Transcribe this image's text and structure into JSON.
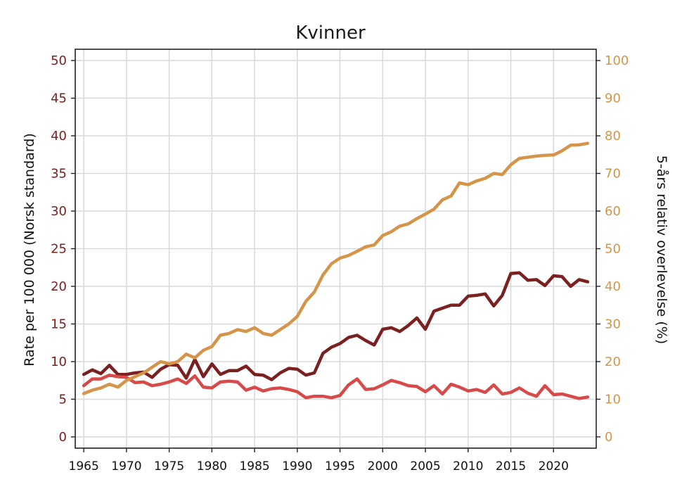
{
  "chart_data": {
    "type": "line",
    "title": "Kvinner",
    "ylabel": "Rate per 100 000 (Norsk standard)",
    "y2label": "5-års relativ overlevelse (%)",
    "xlim": [
      1964,
      2025
    ],
    "ylim": [
      -1.5,
      51.5
    ],
    "y2lim": [
      -3,
      103
    ],
    "xticks": [
      1965,
      1970,
      1975,
      1980,
      1985,
      1990,
      1995,
      2000,
      2005,
      2010,
      2015,
      2020
    ],
    "yticks": [
      0,
      5,
      10,
      15,
      20,
      25,
      30,
      35,
      40,
      45,
      50
    ],
    "y2ticks": [
      0,
      10,
      20,
      30,
      40,
      50,
      60,
      70,
      80,
      90,
      100
    ],
    "grid": true,
    "series": [
      {
        "axis": "left",
        "color": "#7b2020",
        "x": [
          1965,
          1966,
          1967,
          1968,
          1969,
          1970,
          1971,
          1972,
          1973,
          1974,
          1975,
          1976,
          1977,
          1978,
          1979,
          1980,
          1981,
          1982,
          1983,
          1984,
          1985,
          1986,
          1987,
          1988,
          1989,
          1990,
          1991,
          1992,
          1993,
          1994,
          1995,
          1996,
          1997,
          1998,
          1999,
          2000,
          2001,
          2002,
          2003,
          2004,
          2005,
          2006,
          2007,
          2008,
          2009,
          2010,
          2011,
          2012,
          2013,
          2014,
          2015,
          2016,
          2017,
          2018,
          2019,
          2020,
          2021,
          2022,
          2023,
          2024
        ],
        "y": [
          8.3,
          8.9,
          8.4,
          9.5,
          8.3,
          8.3,
          8.5,
          8.6,
          7.9,
          9.0,
          9.6,
          9.5,
          7.8,
          10.3,
          8.0,
          9.7,
          8.3,
          8.8,
          8.8,
          9.4,
          8.3,
          8.2,
          7.6,
          8.5,
          9.1,
          9.0,
          8.2,
          8.5,
          11.1,
          11.9,
          12.4,
          13.2,
          13.5,
          12.8,
          12.2,
          14.3,
          14.5,
          14.0,
          14.8,
          15.8,
          14.3,
          16.7,
          17.1,
          17.5,
          17.5,
          18.7,
          18.8,
          19.0,
          17.4,
          18.8,
          21.7,
          21.8,
          20.8,
          20.9,
          20.1,
          21.4,
          21.3,
          20.0,
          20.9,
          20.6
        ]
      },
      {
        "axis": "left",
        "color": "#d84a4a",
        "x": [
          1965,
          1966,
          1967,
          1968,
          1969,
          1970,
          1971,
          1972,
          1973,
          1974,
          1975,
          1976,
          1977,
          1978,
          1979,
          1980,
          1981,
          1982,
          1983,
          1984,
          1985,
          1986,
          1987,
          1988,
          1989,
          1990,
          1991,
          1992,
          1993,
          1994,
          1995,
          1996,
          1997,
          1998,
          1999,
          2000,
          2001,
          2002,
          2003,
          2004,
          2005,
          2006,
          2007,
          2008,
          2009,
          2010,
          2011,
          2012,
          2013,
          2014,
          2015,
          2016,
          2017,
          2018,
          2019,
          2020,
          2021,
          2022,
          2023,
          2024
        ],
        "y": [
          6.8,
          7.7,
          7.7,
          8.2,
          8.0,
          7.9,
          7.2,
          7.3,
          6.8,
          7.0,
          7.3,
          7.7,
          7.1,
          8.1,
          6.6,
          6.5,
          7.3,
          7.4,
          7.3,
          6.2,
          6.6,
          6.1,
          6.4,
          6.5,
          6.3,
          6.0,
          5.2,
          5.4,
          5.4,
          5.2,
          5.5,
          6.9,
          7.7,
          6.3,
          6.4,
          6.9,
          7.5,
          7.2,
          6.8,
          6.7,
          6.0,
          6.8,
          5.7,
          7.0,
          6.6,
          6.1,
          6.3,
          5.9,
          6.9,
          5.7,
          5.9,
          6.5,
          5.8,
          5.4,
          6.8,
          5.6,
          5.7,
          5.4,
          5.1,
          5.3
        ]
      },
      {
        "axis": "right",
        "color": "#d4954a",
        "x": [
          1965,
          1966,
          1967,
          1968,
          1969,
          1970,
          1971,
          1972,
          1973,
          1974,
          1975,
          1976,
          1977,
          1978,
          1979,
          1980,
          1981,
          1982,
          1983,
          1984,
          1985,
          1986,
          1987,
          1988,
          1989,
          1990,
          1991,
          1992,
          1993,
          1994,
          1995,
          1996,
          1997,
          1998,
          1999,
          2000,
          2001,
          2002,
          2003,
          2004,
          2005,
          2006,
          2007,
          2008,
          2009,
          2010,
          2011,
          2012,
          2013,
          2014,
          2015,
          2016,
          2017,
          2018,
          2019,
          2020,
          2021,
          2022,
          2023,
          2024
        ],
        "y": [
          11.5,
          12.4,
          13.0,
          14.0,
          13.2,
          15.0,
          16.0,
          17.0,
          18.5,
          20.0,
          19.4,
          20.0,
          22.0,
          21.0,
          23.0,
          24.0,
          27.0,
          27.5,
          28.5,
          28.0,
          29.0,
          27.5,
          27.0,
          28.5,
          30.0,
          32.0,
          36.0,
          38.5,
          43.0,
          46.0,
          47.5,
          48.2,
          49.3,
          50.5,
          51.0,
          53.5,
          54.5,
          56.0,
          56.6,
          58.0,
          59.2,
          60.5,
          63.0,
          64.0,
          67.5,
          67.0,
          68.0,
          68.7,
          70.0,
          69.7,
          72.3,
          74.0,
          74.3,
          74.6,
          74.8,
          74.9,
          76.0,
          77.5,
          77.6,
          78.0
        ]
      }
    ]
  }
}
